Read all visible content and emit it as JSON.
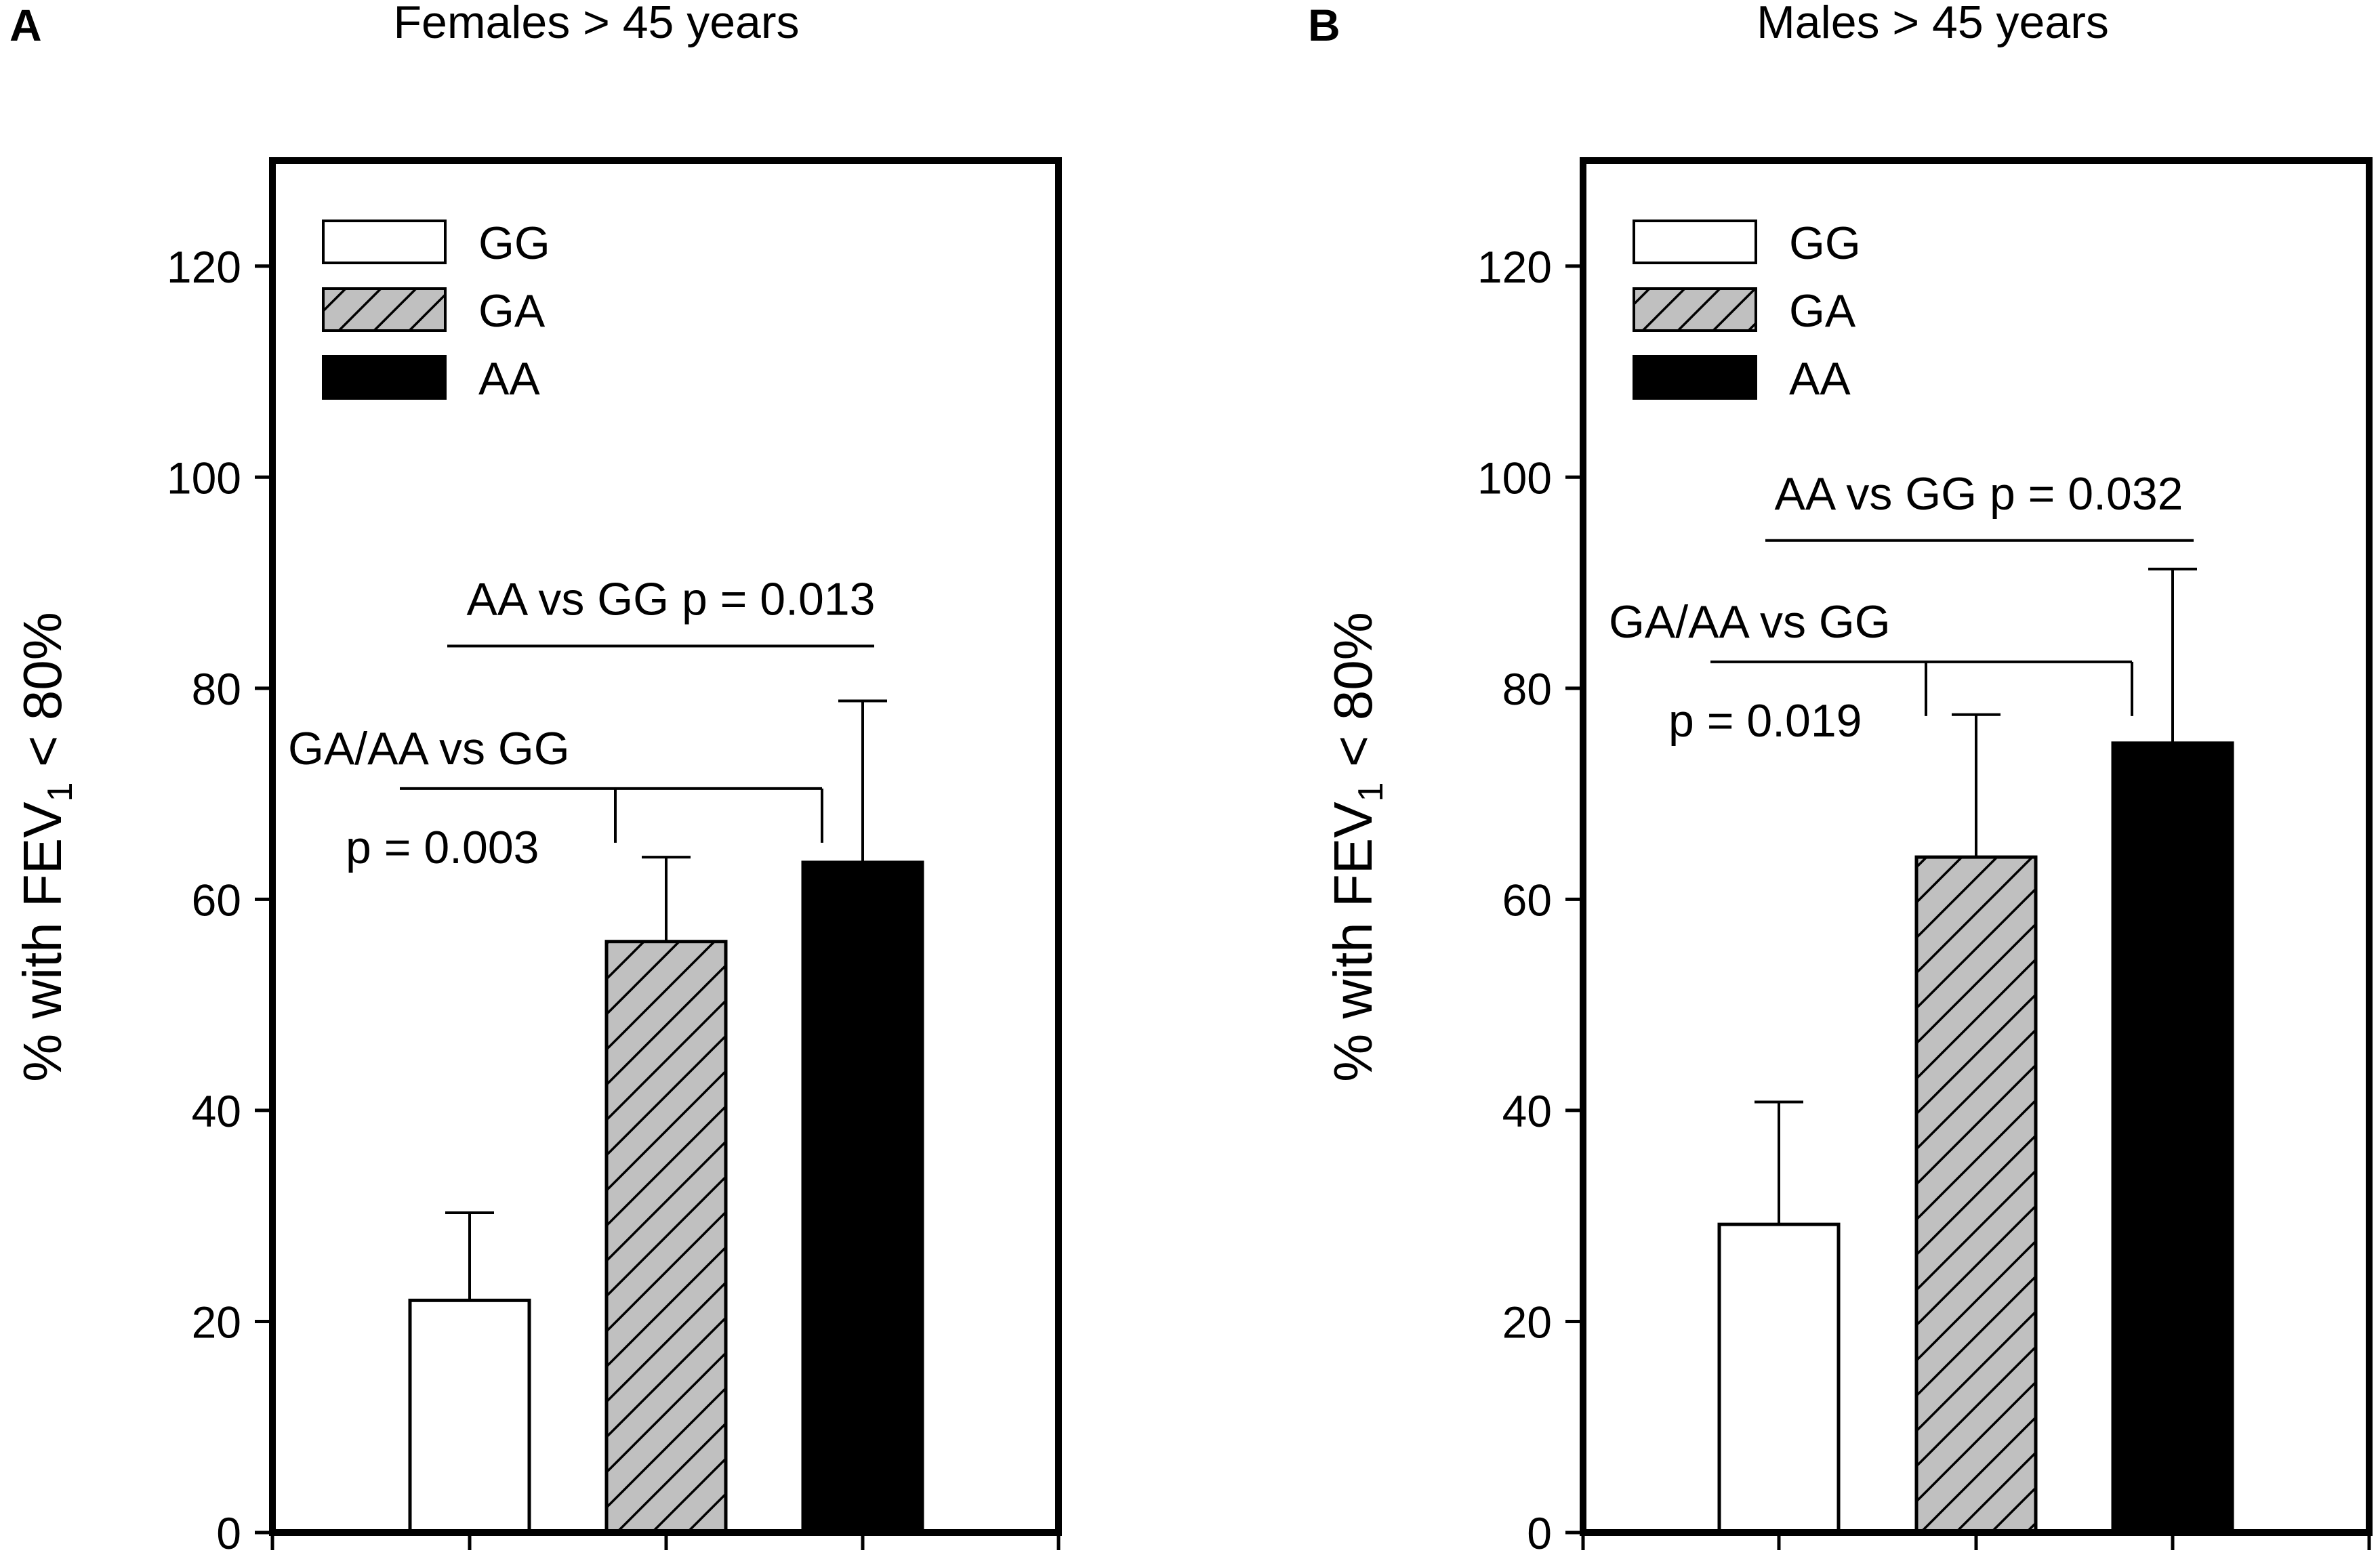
{
  "chart_data": [
    {
      "panel_label": "A",
      "type": "bar",
      "title": "Females > 45 years",
      "ylabel_prefix": "% with FEV",
      "ylabel_subscript": "1",
      "ylabel_suffix": " < 80%",
      "xlabel": "",
      "ylim": [
        0,
        130
      ],
      "yticks": [
        "0",
        "20",
        "40",
        "60",
        "80",
        "100",
        "120"
      ],
      "categories": [
        "GG",
        "GA",
        "AA"
      ],
      "values": [
        22,
        56,
        63.5
      ],
      "error_upper": [
        30.3,
        64,
        78.8
      ],
      "legend": [
        "GG",
        "GA",
        "AA"
      ],
      "legend_position": "top-left",
      "annotations": [
        {
          "text": "AA vs GG p = 0.013",
          "from": "GG",
          "to": "AA",
          "line_y": 84
        },
        {
          "text": "GA/AA vs GG",
          "p_text": "p = 0.003",
          "from": "GG",
          "to": [
            "GA",
            "AA"
          ],
          "line_y": 70.5
        }
      ]
    },
    {
      "panel_label": "B",
      "type": "bar",
      "title": "Males > 45 years",
      "ylabel_prefix": "% with FEV",
      "ylabel_subscript": "1",
      "ylabel_suffix": " < 80%",
      "xlabel": "",
      "ylim": [
        0,
        130
      ],
      "yticks": [
        "0",
        "20",
        "40",
        "60",
        "80",
        "100",
        "120"
      ],
      "categories": [
        "GG",
        "GA",
        "AA"
      ],
      "values": [
        29.2,
        64,
        74.8
      ],
      "error_upper": [
        40.8,
        77.5,
        91.3
      ],
      "legend": [
        "GG",
        "GA",
        "AA"
      ],
      "legend_position": "top-left",
      "annotations": [
        {
          "text": "AA vs GG p = 0.032",
          "from": "GG",
          "to": "AA",
          "line_y": 94
        },
        {
          "text": "GA/AA vs GG",
          "p_text": "p = 0.019",
          "from": "GG",
          "to": [
            "GA",
            "AA"
          ],
          "line_y": 82.5
        }
      ]
    }
  ]
}
